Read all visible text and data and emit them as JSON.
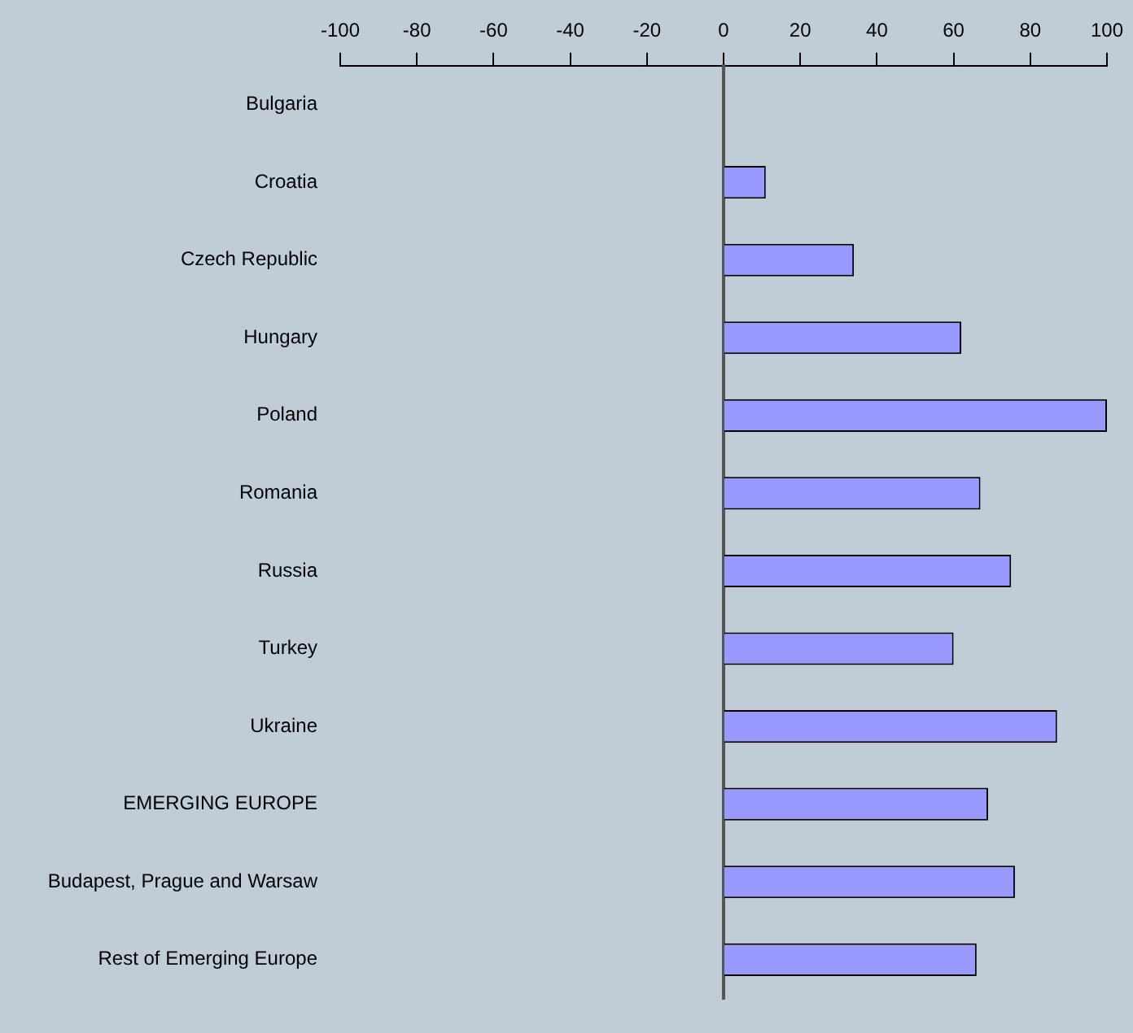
{
  "chart_data": {
    "type": "bar",
    "orientation": "horizontal",
    "categories": [
      "Bulgaria",
      "Croatia",
      "Czech Republic",
      "Hungary",
      "Poland",
      "Romania",
      "Russia",
      "Turkey",
      "Ukraine",
      "EMERGING EUROPE",
      "Budapest, Prague and Warsaw",
      "Rest of Emerging Europe"
    ],
    "values": [
      null,
      11,
      34,
      62,
      100,
      67,
      75,
      60,
      87,
      69,
      76,
      66
    ],
    "color": "#9999ff",
    "xlim": [
      -100,
      100
    ],
    "xticks": [
      -100,
      -80,
      -60,
      -40,
      -20,
      0,
      20,
      40,
      60,
      80,
      100
    ],
    "legend": false
  }
}
